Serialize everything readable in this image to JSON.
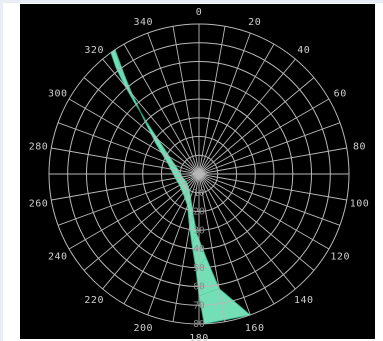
{
  "chart_data": {
    "type": "polar",
    "angular_unit": "degrees",
    "angular_zero": "top",
    "angular_direction": "clockwise",
    "angular_ticks": [
      0,
      20,
      40,
      60,
      80,
      100,
      120,
      140,
      160,
      180,
      200,
      220,
      240,
      260,
      280,
      300,
      320,
      340
    ],
    "radial_ticks": [
      10,
      20,
      30,
      40,
      50,
      60,
      70,
      80
    ],
    "radial_range": [
      0,
      80
    ],
    "radial_label_angle": 180,
    "grid": true,
    "colors": {
      "background": "#000000",
      "grid": "#b8b8b8",
      "band_fill": "#7ef2c6",
      "band_line": "#2fae86",
      "tick_text": "#cfcfcf",
      "radial_text": "#8a8a8a"
    },
    "series": [
      {
        "outer_edge": [
          [
            160,
            80
          ],
          [
            170,
            62
          ],
          [
            175,
            45
          ],
          [
            182,
            32
          ],
          [
            188,
            22
          ],
          [
            196,
            15
          ],
          [
            210,
            10
          ],
          [
            235,
            8
          ],
          [
            260,
            9
          ],
          [
            285,
            12
          ],
          [
            300,
            18
          ],
          [
            310,
            28
          ],
          [
            315,
            40
          ],
          [
            318,
            52
          ],
          [
            320,
            62
          ],
          [
            322,
            72
          ],
          [
            324,
            80
          ]
        ],
        "inner_edge": [
          [
            178,
            80
          ],
          [
            180,
            65
          ],
          [
            182,
            50
          ],
          [
            186,
            37
          ],
          [
            192,
            26
          ],
          [
            200,
            18
          ],
          [
            215,
            14
          ],
          [
            240,
            12
          ],
          [
            262,
            13
          ],
          [
            290,
            18
          ],
          [
            305,
            28
          ],
          [
            315,
            42
          ],
          [
            320,
            55
          ],
          [
            323,
            66
          ],
          [
            326,
            80
          ]
        ]
      }
    ]
  }
}
